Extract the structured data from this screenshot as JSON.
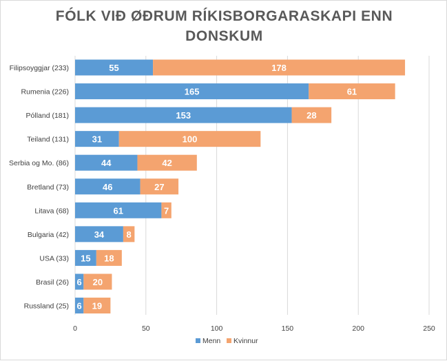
{
  "chart_data": {
    "type": "bar",
    "orientation": "horizontal",
    "stacked": true,
    "title_line1": "FÓLK VIÐ ØÐRUM RÍKISBORGARASKAPI ENN",
    "title_line2": "DONSKUM",
    "categories": [
      "Filipsoyggjar (233)",
      "Rumenia (226)",
      "Pólland (181)",
      "Teiland (131)",
      "Serbia og Mo. (86)",
      "Bretland (73)",
      "Litava (68)",
      "Bulgaria (42)",
      "USA (33)",
      "Brasil (26)",
      "Russland (25)"
    ],
    "series": [
      {
        "name": "Menn",
        "color": "#5b9bd5",
        "values": [
          55,
          165,
          153,
          31,
          44,
          46,
          61,
          34,
          15,
          6,
          6
        ]
      },
      {
        "name": "Kvinnur",
        "color": "#f4a46f",
        "values": [
          178,
          61,
          28,
          100,
          42,
          27,
          7,
          8,
          18,
          20,
          19
        ]
      }
    ],
    "xlim": [
      0,
      250
    ],
    "xticks": [
      "0",
      "50",
      "100",
      "150",
      "200",
      "250"
    ],
    "grid": true,
    "legend_position": "bottom"
  }
}
